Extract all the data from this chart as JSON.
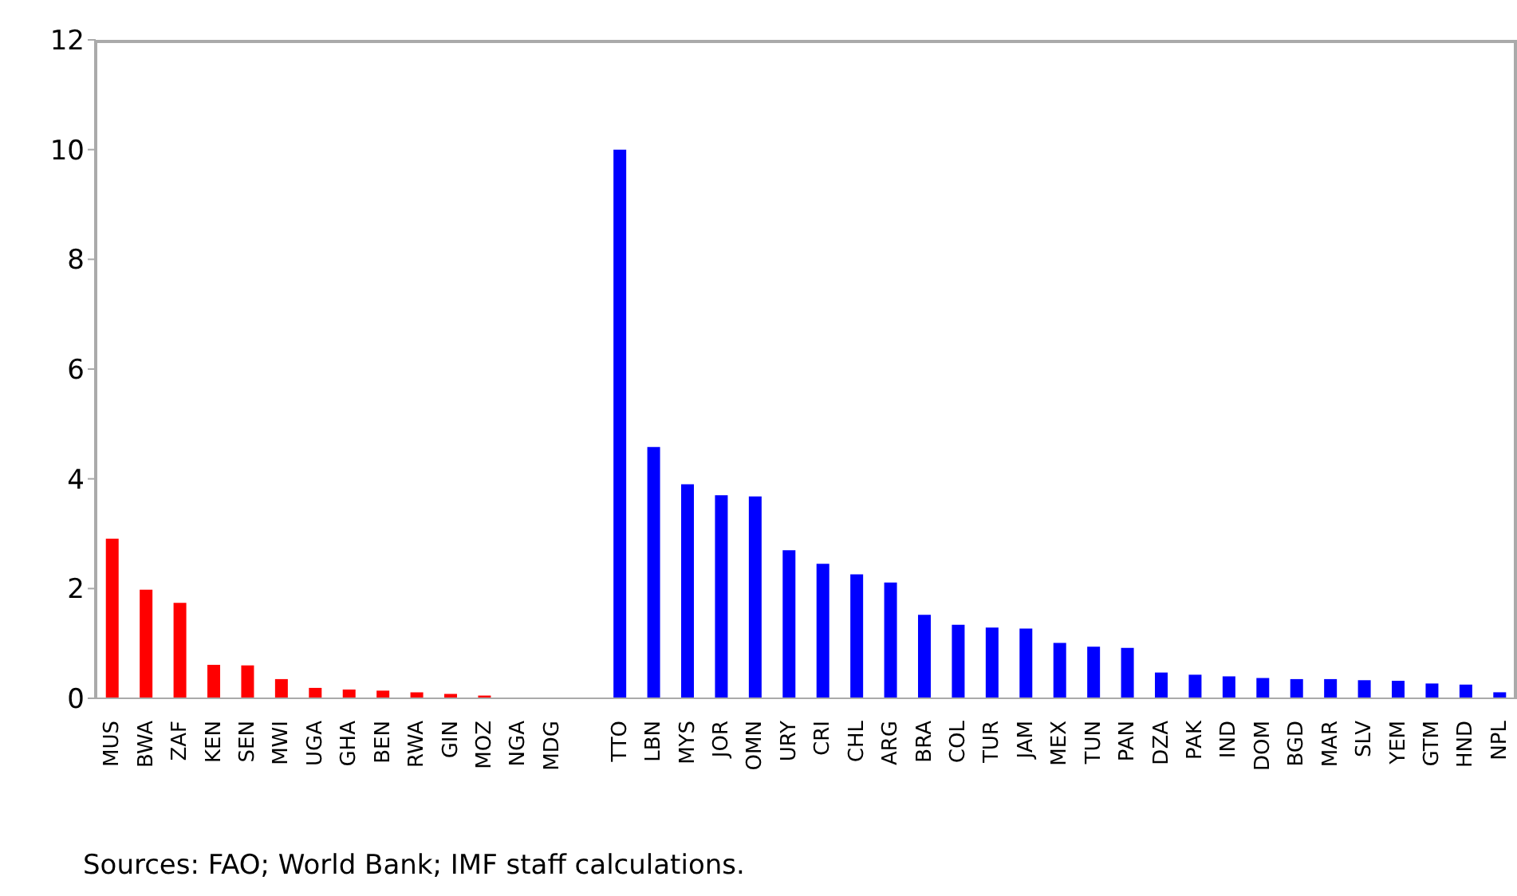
{
  "chart_data": {
    "type": "bar",
    "categories": [
      "MUS",
      "BWA",
      "ZAF",
      "KEN",
      "SEN",
      "MWI",
      "UGA",
      "GHA",
      "BEN",
      "RWA",
      "GIN",
      "MOZ",
      "NGA",
      "MDG",
      null,
      "TTO",
      "LBN",
      "MYS",
      "JOR",
      "OMN",
      "URY",
      "CRI",
      "CHL",
      "ARG",
      "BRA",
      "COL",
      "TUR",
      "JAM",
      "MEX",
      "TUN",
      "PAN",
      "DZA",
      "PAK",
      "IND",
      "DOM",
      "BGD",
      "MAR",
      "SLV",
      "YEM",
      "GTM",
      "HND",
      "NPL"
    ],
    "values": [
      2.91,
      1.98,
      1.74,
      0.61,
      0.6,
      0.35,
      0.19,
      0.16,
      0.14,
      0.11,
      0.08,
      0.05,
      null,
      0,
      null,
      10.0,
      4.58,
      3.9,
      3.7,
      3.68,
      2.7,
      2.45,
      2.26,
      2.11,
      1.52,
      1.34,
      1.29,
      1.27,
      1.01,
      0.94,
      0.92,
      0.47,
      0.43,
      0.4,
      0.37,
      0.35,
      0.35,
      0.33,
      0.32,
      0.27,
      0.25,
      0.11
    ],
    "colors": [
      "#ff0000",
      "#ff0000",
      "#ff0000",
      "#ff0000",
      "#ff0000",
      "#ff0000",
      "#ff0000",
      "#ff0000",
      "#ff0000",
      "#ff0000",
      "#ff0000",
      "#ff0000",
      "#ff0000",
      "#ff0000",
      "#ff0000",
      "#0000ff",
      "#0000ff",
      "#0000ff",
      "#0000ff",
      "#0000ff",
      "#0000ff",
      "#0000ff",
      "#0000ff",
      "#0000ff",
      "#0000ff",
      "#0000ff",
      "#0000ff",
      "#0000ff",
      "#0000ff",
      "#0000ff",
      "#0000ff",
      "#0000ff",
      "#0000ff",
      "#0000ff",
      "#0000ff",
      "#0000ff",
      "#0000ff",
      "#0000ff",
      "#0000ff",
      "#0000ff",
      "#0000ff",
      "#0000ff"
    ],
    "ylim": [
      0,
      12
    ],
    "yticks": [
      0,
      2,
      4,
      6,
      8,
      10,
      12
    ],
    "grid": false,
    "legend": false,
    "annotations": [
      "Sources: FAO; World Bank; IMF staff calculations."
    ]
  }
}
